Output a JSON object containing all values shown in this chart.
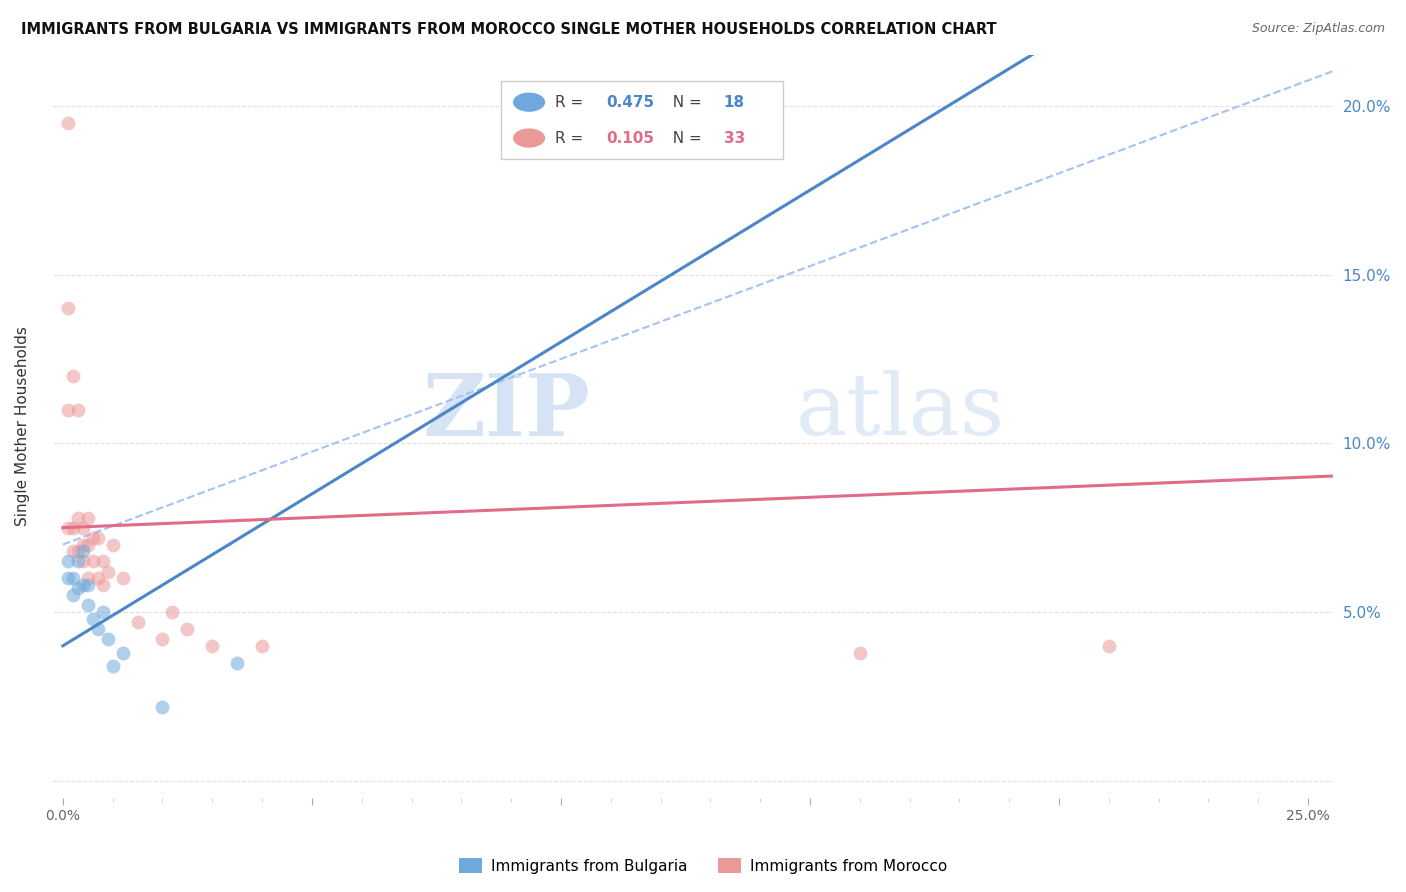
{
  "title": "IMMIGRANTS FROM BULGARIA VS IMMIGRANTS FROM MOROCCO SINGLE MOTHER HOUSEHOLDS CORRELATION CHART",
  "source": "Source: ZipAtlas.com",
  "ylabel": "Single Mother Households",
  "x_tick_labels_show": [
    "0.0%",
    "25.0%"
  ],
  "x_ticks_show": [
    0.0,
    0.25
  ],
  "y_ticks": [
    0.0,
    0.05,
    0.1,
    0.15,
    0.2
  ],
  "y_tick_labels_right": [
    "",
    "5.0%",
    "10.0%",
    "15.0%",
    "20.0%"
  ],
  "xlim": [
    -0.002,
    0.255
  ],
  "ylim": [
    -0.005,
    0.215
  ],
  "color_bulgaria": "#6fa8dc",
  "color_morocco": "#ea9999",
  "color_bulgaria_line": "#4a86c8",
  "color_morocco_line": "#e06c87",
  "color_dashed": "#a4c2f4",
  "background_color": "#ffffff",
  "grid_color": "#e0e0e0",
  "watermark_zip": "ZIP",
  "watermark_atlas": "atlas",
  "label_bulgaria": "Immigrants from Bulgaria",
  "label_morocco": "Immigrants from Morocco",
  "bulgaria_x": [
    0.001,
    0.001,
    0.002,
    0.002,
    0.003,
    0.003,
    0.004,
    0.004,
    0.005,
    0.005,
    0.006,
    0.007,
    0.008,
    0.009,
    0.01,
    0.012,
    0.02,
    0.035
  ],
  "bulgaria_y": [
    0.065,
    0.06,
    0.06,
    0.055,
    0.065,
    0.057,
    0.068,
    0.058,
    0.052,
    0.058,
    0.048,
    0.045,
    0.05,
    0.042,
    0.034,
    0.038,
    0.022,
    0.035
  ],
  "morocco_x": [
    0.001,
    0.001,
    0.001,
    0.001,
    0.002,
    0.002,
    0.002,
    0.003,
    0.003,
    0.003,
    0.004,
    0.004,
    0.004,
    0.005,
    0.005,
    0.005,
    0.006,
    0.006,
    0.007,
    0.007,
    0.008,
    0.008,
    0.009,
    0.01,
    0.012,
    0.015,
    0.02,
    0.022,
    0.025,
    0.03,
    0.04,
    0.16,
    0.21
  ],
  "morocco_y": [
    0.195,
    0.14,
    0.11,
    0.075,
    0.12,
    0.075,
    0.068,
    0.11,
    0.078,
    0.068,
    0.075,
    0.07,
    0.065,
    0.078,
    0.07,
    0.06,
    0.072,
    0.065,
    0.072,
    0.06,
    0.065,
    0.058,
    0.062,
    0.07,
    0.06,
    0.047,
    0.042,
    0.05,
    0.045,
    0.04,
    0.04,
    0.038,
    0.04
  ],
  "dot_size": 100,
  "dot_alpha": 0.55,
  "r_bulgaria": "0.475",
  "n_bulgaria": "18",
  "r_morocco": "0.105",
  "n_morocco": "33"
}
